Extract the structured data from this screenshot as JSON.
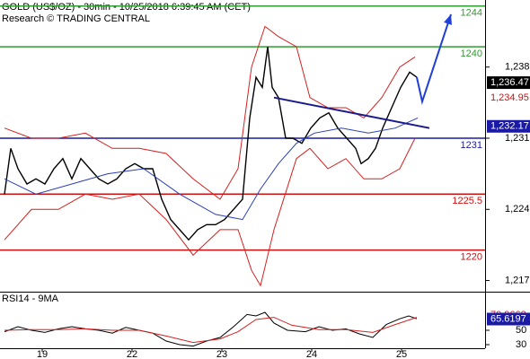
{
  "chart_data": {
    "type": "line",
    "title": "GOLD (US$/OZ) - 30min - 10/25/2018 6:39:45 AM (CET)",
    "subtitle": "Research © TRADING CENTRAL",
    "xlim": [
      -0.47,
      4.93
    ],
    "xticks": [
      {
        "value": 0,
        "label": "19"
      },
      {
        "value": 1,
        "label": "22"
      },
      {
        "value": 2,
        "label": "23"
      },
      {
        "value": 3,
        "label": "24"
      },
      {
        "value": 4,
        "label": "25"
      }
    ],
    "ylim": [
      1215.9,
      1244.6
    ],
    "yticks": [
      {
        "value": 1238,
        "label": "1,238"
      },
      {
        "value": 1231,
        "label": "1,231"
      },
      {
        "value": 1224,
        "label": "1,224"
      },
      {
        "value": 1217,
        "label": "1,217"
      }
    ],
    "series": [
      {
        "name": "GOLD",
        "color": "#000000",
        "width": 1.4,
        "x": [
          -0.42,
          -0.35,
          -0.27,
          -0.17,
          -0.07,
          0.03,
          0.13,
          0.23,
          0.33,
          0.43,
          0.53,
          0.63,
          0.73,
          0.83,
          0.93,
          1.03,
          1.13,
          1.23,
          1.33,
          1.43,
          1.53,
          1.63,
          1.73,
          1.83,
          1.93,
          2.03,
          2.13,
          2.23,
          2.31,
          2.38,
          2.45,
          2.51,
          2.56,
          2.63,
          2.71,
          2.79,
          2.89,
          2.99,
          3.09,
          3.19,
          3.29,
          3.39,
          3.49,
          3.55,
          3.63,
          3.71,
          3.79,
          3.89,
          3.99,
          4.09,
          4.17
        ],
        "values": [
          1225.5,
          1230,
          1228,
          1226.5,
          1227,
          1226.5,
          1228,
          1229,
          1227,
          1229,
          1228,
          1227,
          1226.5,
          1227,
          1228,
          1228.5,
          1228,
          1228,
          1225,
          1223,
          1222,
          1221,
          1222,
          1222.5,
          1222.5,
          1223,
          1224,
          1225,
          1233,
          1237,
          1236,
          1240,
          1236,
          1235,
          1231,
          1231,
          1230.5,
          1232,
          1233,
          1233.5,
          1232,
          1231,
          1230,
          1228.5,
          1229,
          1230,
          1232,
          1234,
          1236,
          1237.5,
          1237
        ]
      },
      {
        "name": "Upper band",
        "color": "#d42020",
        "width": 1,
        "x": [
          -0.42,
          -0.12,
          0.18,
          0.48,
          0.78,
          1.08,
          1.38,
          1.68,
          1.98,
          2.18,
          2.33,
          2.48,
          2.63,
          2.83,
          2.98,
          3.18,
          3.38,
          3.58,
          3.78,
          3.98,
          4.15
        ],
        "values": [
          1232,
          1231,
          1231,
          1231.5,
          1230,
          1230,
          1229.5,
          1227,
          1225,
          1228,
          1238,
          1242,
          1241,
          1240,
          1235,
          1234,
          1234,
          1233,
          1235,
          1238,
          1239
        ]
      },
      {
        "name": "Lower band",
        "color": "#d42020",
        "width": 1,
        "x": [
          -0.42,
          -0.12,
          0.18,
          0.48,
          0.78,
          1.08,
          1.38,
          1.68,
          1.98,
          2.18,
          2.33,
          2.43,
          2.58,
          2.83,
          2.98,
          3.18,
          3.38,
          3.58,
          3.78,
          3.98,
          4.15
        ],
        "values": [
          1221,
          1224,
          1224,
          1225.5,
          1225,
          1225.5,
          1223,
          1219.5,
          1222,
          1222,
          1218,
          1216.5,
          1222,
          1229,
          1230,
          1228,
          1229,
          1227,
          1227,
          1228,
          1231
        ]
      },
      {
        "name": "Moving average",
        "color": "#2a3fb8",
        "width": 1,
        "x": [
          -0.42,
          -0.07,
          0.33,
          0.73,
          1.13,
          1.53,
          1.93,
          2.23,
          2.43,
          2.63,
          2.83,
          3.03,
          3.33,
          3.63,
          3.93,
          4.18
        ],
        "values": [
          1227,
          1225.5,
          1226.5,
          1227.5,
          1228,
          1225.5,
          1223.5,
          1223,
          1226,
          1228.5,
          1230.5,
          1231.5,
          1232,
          1231.5,
          1232,
          1233
        ]
      }
    ],
    "levels": {
      "values": [
        1244,
        1240,
        1231,
        1225.5,
        1220
      ],
      "colors": [
        "#2e9e2e",
        "#2e9e2e",
        "#1a1aa6",
        "#d01010",
        "#d01010"
      ]
    },
    "trendline": {
      "color": "#1a1a8c",
      "x": [
        2.58,
        4.31
      ],
      "values": [
        1235,
        1232
      ]
    },
    "forecast": {
      "color": "#1f3fd6",
      "x": [
        4.17,
        4.23,
        4.55
      ],
      "values": [
        1237,
        1234.6,
        1243.2
      ]
    },
    "markers": [
      {
        "value": 1236.47,
        "label": "1,236.47",
        "color": "#000000",
        "filled": true
      },
      {
        "value": 1234.95,
        "label": "1,234.95",
        "color": "#d01010",
        "filled": false
      },
      {
        "value": 1232.17,
        "label": "1,232.17",
        "color": "#1a1aa6",
        "filled": true
      }
    ],
    "rsi": {
      "title": "RSI14 - 9MA",
      "ylim": [
        25,
        102.5
      ],
      "yticks": [
        50,
        30
      ],
      "series": [
        {
          "name": "RSI14",
          "color": "#000000",
          "x": [
            -0.42,
            -0.27,
            -0.12,
            0.03,
            0.18,
            0.33,
            0.48,
            0.63,
            0.78,
            0.93,
            1.08,
            1.23,
            1.38,
            1.53,
            1.68,
            1.83,
            1.98,
            2.13,
            2.28,
            2.38,
            2.48,
            2.58,
            2.73,
            2.93,
            3.08,
            3.23,
            3.38,
            3.53,
            3.68,
            3.83,
            3.98,
            4.08,
            4.17
          ],
          "values": [
            48,
            55,
            50,
            47,
            52,
            55,
            52,
            50,
            46,
            54,
            50,
            46,
            35,
            30,
            28,
            35,
            40,
            55,
            72,
            70,
            75,
            60,
            50,
            48,
            55,
            50,
            52,
            45,
            40,
            58,
            66,
            70,
            66
          ]
        },
        {
          "name": "9MA",
          "color": "#d42020",
          "x": [
            -0.42,
            -0.12,
            0.18,
            0.48,
            0.78,
            1.08,
            1.38,
            1.68,
            1.98,
            2.18,
            2.38,
            2.58,
            2.78,
            3.08,
            3.38,
            3.68,
            3.93,
            4.17
          ],
          "values": [
            50,
            51,
            51,
            52,
            50,
            50,
            42,
            33,
            38,
            48,
            65,
            68,
            57,
            51,
            51,
            47,
            58,
            68
          ]
        }
      ],
      "markers": [
        {
          "value": 70.9668,
          "color": "#d01010",
          "filled": false
        },
        {
          "value": 65.6197,
          "color": "#1a1aa6",
          "filled": true
        }
      ]
    }
  }
}
